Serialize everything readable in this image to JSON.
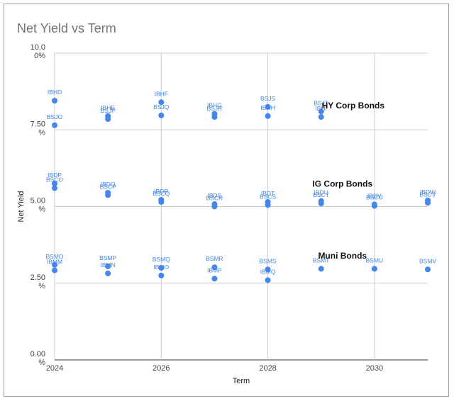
{
  "chart_data": {
    "type": "scatter",
    "title": "Net Yield vs Term",
    "xlabel": "Term",
    "ylabel": "Net Yield",
    "xlim": [
      2024,
      2031
    ],
    "ylim": [
      0,
      10
    ],
    "x_ticks": [
      "2024",
      "2026",
      "2028",
      "2030"
    ],
    "y_ticks": [
      {
        "value": 0,
        "top": "0.00",
        "bottom": "%"
      },
      {
        "value": 2.5,
        "top": "2.50",
        "bottom": "%"
      },
      {
        "value": 5,
        "top": "5.00",
        "bottom": "%"
      },
      {
        "value": 7.5,
        "top": "7.50",
        "bottom": "%"
      },
      {
        "value": 10,
        "top": "10.0",
        "bottom": "0%"
      }
    ],
    "grid": true,
    "point_color": "#4285f4",
    "group_labels": [
      {
        "text": "HY Corp Bonds",
        "x": 2029.6,
        "y": 8.2
      },
      {
        "text": "IG Corp Bonds",
        "x": 2029.4,
        "y": 5.65
      },
      {
        "text": "Muni Bonds",
        "x": 2029.4,
        "y": 3.3
      }
    ],
    "points": [
      {
        "label": "IBHD",
        "x": 2024,
        "y": 8.45
      },
      {
        "label": "BSJO",
        "x": 2024,
        "y": 7.65
      },
      {
        "label": "IBHE",
        "x": 2025,
        "y": 7.95
      },
      {
        "label": "BSJP",
        "x": 2025,
        "y": 7.85
      },
      {
        "label": "IBHF",
        "x": 2026,
        "y": 8.4
      },
      {
        "label": "BSJQ",
        "x": 2026,
        "y": 7.97
      },
      {
        "label": "IBHG",
        "x": 2027,
        "y": 8.02
      },
      {
        "label": "BSJR",
        "x": 2027,
        "y": 7.92
      },
      {
        "label": "BSJS",
        "x": 2028,
        "y": 8.25
      },
      {
        "label": "IBHH",
        "x": 2028,
        "y": 7.95
      },
      {
        "label": "BSJT",
        "x": 2029,
        "y": 8.1
      },
      {
        "label": "IBHI",
        "x": 2029,
        "y": 7.92
      },
      {
        "label": "IBDP",
        "x": 2024,
        "y": 5.75
      },
      {
        "label": "BSCO",
        "x": 2024,
        "y": 5.6
      },
      {
        "label": "IBDQ",
        "x": 2025,
        "y": 5.45
      },
      {
        "label": "BSCP",
        "x": 2025,
        "y": 5.37
      },
      {
        "label": "IBDR",
        "x": 2026,
        "y": 5.22
      },
      {
        "label": "BSCQ",
        "x": 2026,
        "y": 5.15
      },
      {
        "label": "IBDS",
        "x": 2027,
        "y": 5.08
      },
      {
        "label": "BSCR",
        "x": 2027,
        "y": 5.0
      },
      {
        "label": "IBDT",
        "x": 2028,
        "y": 5.15
      },
      {
        "label": "BSCS",
        "x": 2028,
        "y": 5.05
      },
      {
        "label": "IBDU",
        "x": 2029,
        "y": 5.18
      },
      {
        "label": "BSCT",
        "x": 2029,
        "y": 5.1
      },
      {
        "label": "IBDV",
        "x": 2030,
        "y": 5.07
      },
      {
        "label": "BSCU",
        "x": 2030,
        "y": 5.02
      },
      {
        "label": "IBDW",
        "x": 2031,
        "y": 5.2
      },
      {
        "label": "BSCV",
        "x": 2031,
        "y": 5.12
      },
      {
        "label": "BSMO",
        "x": 2024,
        "y": 3.1
      },
      {
        "label": "IBMM",
        "x": 2024,
        "y": 2.92
      },
      {
        "label": "BSMP",
        "x": 2025,
        "y": 3.05
      },
      {
        "label": "IBMN",
        "x": 2025,
        "y": 2.82
      },
      {
        "label": "BSMQ",
        "x": 2026,
        "y": 3.0
      },
      {
        "label": "IBMO",
        "x": 2026,
        "y": 2.75
      },
      {
        "label": "BSMR",
        "x": 2027,
        "y": 3.02
      },
      {
        "label": "IBMP",
        "x": 2027,
        "y": 2.65
      },
      {
        "label": "BSMS",
        "x": 2028,
        "y": 2.95
      },
      {
        "label": "IBMQ",
        "x": 2028,
        "y": 2.6
      },
      {
        "label": "BSMT",
        "x": 2029,
        "y": 2.97
      },
      {
        "label": "BSMU",
        "x": 2030,
        "y": 2.97
      },
      {
        "label": "BSMV",
        "x": 2031,
        "y": 2.95
      }
    ]
  }
}
